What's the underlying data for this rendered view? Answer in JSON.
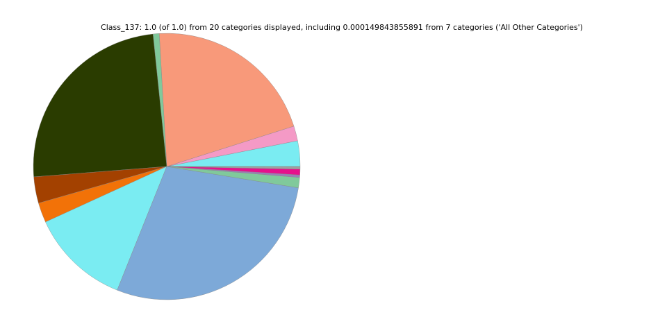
{
  "chart_data": {
    "type": "pie",
    "title": "Class_137: 1.0 (of 1.0) from 20 categories displayed, including 0.000149843855891 from 7 categories ('All Other Categories')",
    "values": [
      0.031,
      0.018,
      0.21,
      0.0075,
      0.246,
      0.032,
      0.024,
      0.121,
      0.285,
      0.0125,
      0.003,
      0.007,
      0.003,
      0.00015
    ],
    "colors": [
      "#7aecf2",
      "#f49ac6",
      "#f8997a",
      "#80c99b",
      "#2a3c00",
      "#a34100",
      "#f27208",
      "#7aecf2",
      "#7da9d8",
      "#80c99b",
      "#9b7fb8",
      "#e6108c",
      "#a0a0a0",
      "#c8c8c8"
    ]
  }
}
